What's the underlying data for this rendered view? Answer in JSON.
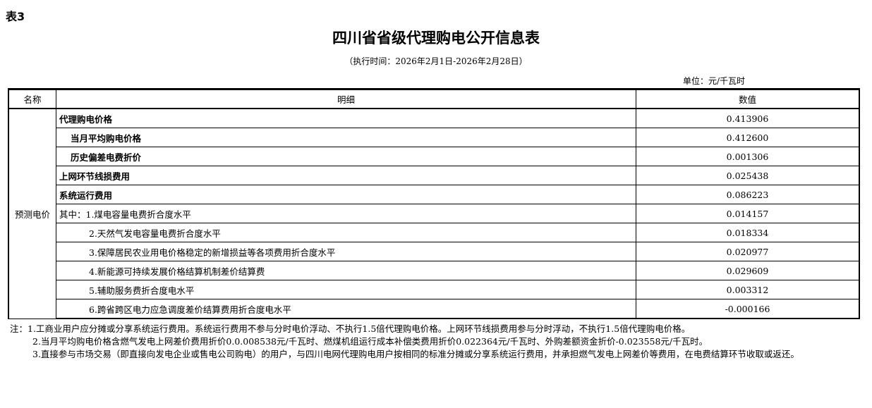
{
  "label": "表3",
  "title": "四川省省级代理购电公开信息表",
  "period": "（执行时间：2026年2月1日-2026年2月28日）",
  "unit": "单位：元/千瓦时",
  "headers": {
    "name": "名称",
    "detail": "明细",
    "value": "数值"
  },
  "category": "预测电价",
  "rows": [
    {
      "detail": "代理购电价格",
      "value": "0.413906"
    },
    {
      "detail": "当月平均购电价格",
      "value": "0.412600"
    },
    {
      "detail": "历史偏差电费折价",
      "value": "0.001306"
    },
    {
      "detail": "上网环节线损费用",
      "value": "0.025438"
    },
    {
      "detail": "系统运行费用",
      "value": "0.086223"
    },
    {
      "detail": "其中：1.煤电容量电费折合度水平",
      "value": "0.014157"
    },
    {
      "detail": "2.天然气发电容量电费折合度水平",
      "value": "0.018334"
    },
    {
      "detail": "3.保障居民农业用电价格稳定的新增损益等各项费用折合度水平",
      "value": "0.020977"
    },
    {
      "detail": "4.新能源可持续发展价格结算机制差价结算费",
      "value": "0.029609"
    },
    {
      "detail": "5.辅助服务费折合度电水平",
      "value": "0.003312"
    },
    {
      "detail": "6.跨省跨区电力应急调度差价结算费用折合度电水平",
      "value": "-0.000166"
    }
  ],
  "notes": [
    "注：1.工商业用户应分摊或分享系统运行费用。系统运行费用不参与分时电价浮动、不执行1.5倍代理购电价格。上网环节线损费用参与分时浮动，不执行1.5倍代理购电价格。",
    "2.当月平均购电价格含燃气发电上网差价费用折价0.0.008538元/千瓦时、燃煤机组运行成本补偿类费用折价0.022364元/千瓦时、外购差额资金折价-0.023558元/千瓦时。",
    "3.直接参与市场交易（即直接向发电企业或售电公司购电）的用户，与四川电网代理购电用户按相同的标准分摊或分享系统运行费用，并承担燃气发电上网差价等费用，在电费结算环节收取或返还。"
  ]
}
